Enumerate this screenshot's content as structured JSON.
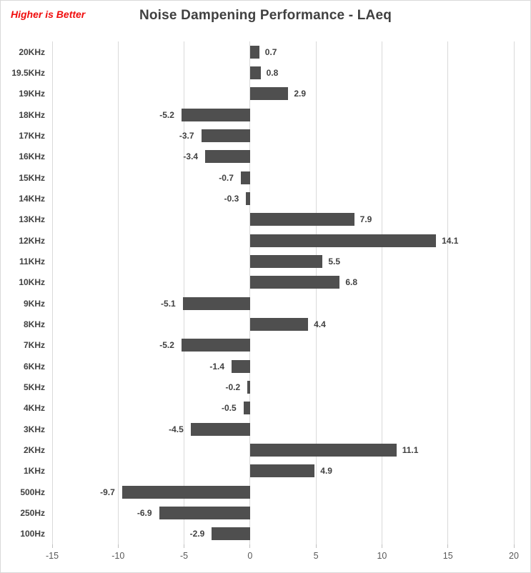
{
  "header": {
    "note": "Higher is Better",
    "note_color": "#f00d0d",
    "title": "Noise Dampening Performance - LAeq",
    "title_color": "#404040"
  },
  "chart_data": {
    "type": "bar",
    "orientation": "horizontal",
    "title": "Noise Dampening Performance - LAeq",
    "annotation": "Higher is Better",
    "categories": [
      "20KHz",
      "19.5KHz",
      "19KHz",
      "18KHz",
      "17KHz",
      "16KHz",
      "15KHz",
      "14KHz",
      "13KHz",
      "12KHz",
      "11KHz",
      "10KHz",
      "9KHz",
      "8KHz",
      "7KHz",
      "6KHz",
      "5KHz",
      "4KHz",
      "3KHz",
      "2KHz",
      "1KHz",
      "500Hz",
      "250Hz",
      "100Hz"
    ],
    "values": [
      0.7,
      0.8,
      2.9,
      -5.2,
      -3.7,
      -3.4,
      -0.7,
      -0.3,
      7.9,
      14.1,
      5.5,
      6.8,
      -5.1,
      4.4,
      -5.2,
      -1.4,
      -0.2,
      -0.5,
      -4.5,
      11.1,
      4.9,
      -9.7,
      -6.9,
      -2.9
    ],
    "value_labels": [
      "0.7",
      "0.8",
      "2.9",
      "-5.2",
      "-3.7",
      "-3.4",
      "-0.7",
      "-0.3",
      "7.9",
      "14.1",
      "5.5",
      "6.8",
      "-5.1",
      "4.4",
      "-5.2",
      "-1.4",
      "-0.2",
      "-0.5",
      "-4.5",
      "11.1",
      "4.9",
      "-9.7",
      "-6.9",
      "-2.9"
    ],
    "xlim": [
      -15,
      20
    ],
    "xticks": [
      -15,
      -10,
      -5,
      0,
      5,
      10,
      15,
      20
    ],
    "xtick_labels": [
      "-15",
      "-10",
      "-5",
      "0",
      "5",
      "10",
      "15",
      "20"
    ],
    "grid": "vertical",
    "legend": "none",
    "colors": {
      "bar": "#4f4f4f",
      "gridline": "#d9d9d9",
      "tickmark": "#bfbfbf",
      "category_label": "#404040",
      "value_label": "#404040",
      "xtick_label": "#595959"
    }
  }
}
